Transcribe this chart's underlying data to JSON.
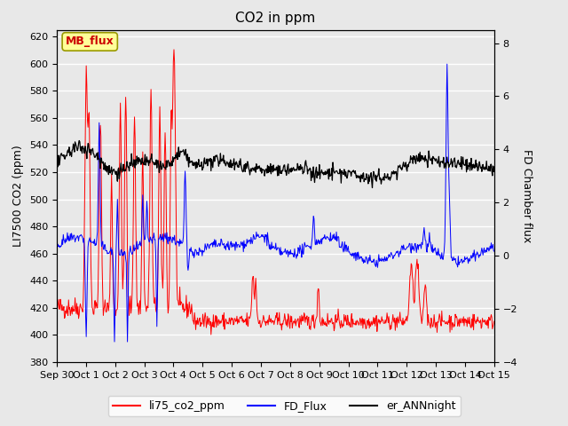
{
  "title": "CO2 in ppm",
  "ylabel_left": "LI7500 CO2 (ppm)",
  "ylabel_right": "FD Chamber flux",
  "ylim_left": [
    380,
    625
  ],
  "ylim_right": [
    -4,
    8.5
  ],
  "yticks_left": [
    380,
    400,
    420,
    440,
    460,
    480,
    500,
    520,
    540,
    560,
    580,
    600,
    620
  ],
  "yticks_right": [
    -4,
    -2,
    0,
    2,
    4,
    6,
    8
  ],
  "xticklabels": [
    "Sep 30",
    "Oct 1",
    "Oct 2",
    "Oct 3",
    "Oct 4",
    "Oct 5",
    "Oct 6",
    "Oct 7",
    "Oct 8",
    "Oct 9",
    "Oct 10",
    "Oct 11",
    "Oct 12",
    "Oct 13",
    "Oct 14",
    "Oct 15"
  ],
  "background_color": "#e8e8e8",
  "plot_bg_color": "#e8e8e8",
  "grid_color": "#ffffff",
  "title_fontsize": 11,
  "label_fontsize": 9,
  "tick_fontsize": 8,
  "line_red": "#ff0000",
  "line_blue": "#0000ff",
  "line_black": "#000000",
  "legend_labels": [
    "li75_co2_ppm",
    "FD_Flux",
    "er_ANNnight"
  ],
  "annotation_text": "MB_flux",
  "annotation_color": "#cc0000",
  "annotation_bg": "#ffff99",
  "annotation_border": "#999900"
}
